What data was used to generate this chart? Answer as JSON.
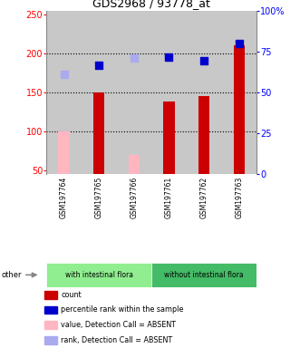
{
  "title": "GDS2968 / 93778_at",
  "samples": [
    "GSM197764",
    "GSM197765",
    "GSM197766",
    "GSM197761",
    "GSM197762",
    "GSM197763"
  ],
  "bar_counts": [
    null,
    150,
    null,
    138,
    145,
    210
  ],
  "bar_counts_absent": [
    100,
    null,
    70,
    null,
    null,
    null
  ],
  "bar_color_present": "#cc0000",
  "bar_color_absent": "#ffb6c1",
  "percentile_ranks": [
    null,
    185,
    null,
    195,
    191,
    212
  ],
  "percentile_ranks_absent": [
    173,
    null,
    194,
    null,
    null,
    null
  ],
  "rank_color_present": "#0000cc",
  "rank_color_absent": "#aaaaee",
  "left_yticks": [
    50,
    100,
    150,
    200,
    250
  ],
  "left_ytick_labels": [
    "50",
    "100",
    "150",
    "200",
    "250"
  ],
  "right_yticks": [
    0,
    25,
    50,
    75,
    100
  ],
  "right_ytick_labels": [
    "0",
    "25",
    "50",
    "75",
    "100%"
  ],
  "ylim_min": 45,
  "ylim_max": 255,
  "dotted_lines": [
    100,
    150,
    200
  ],
  "col_bg": "#c8c8c8",
  "plot_bg": "#ffffff",
  "group1_color": "#90ee90",
  "group2_color": "#44bb66",
  "group1_label": "with intestinal flora",
  "group2_label": "without intestinal flora",
  "legend_items": [
    {
      "label": "count",
      "color": "#cc0000"
    },
    {
      "label": "percentile rank within the sample",
      "color": "#0000cc"
    },
    {
      "label": "value, Detection Call = ABSENT",
      "color": "#ffb6c1"
    },
    {
      "label": "rank, Detection Call = ABSENT",
      "color": "#aaaaee"
    }
  ],
  "other_label": "other",
  "bar_width": 0.32,
  "sq_size": 30
}
